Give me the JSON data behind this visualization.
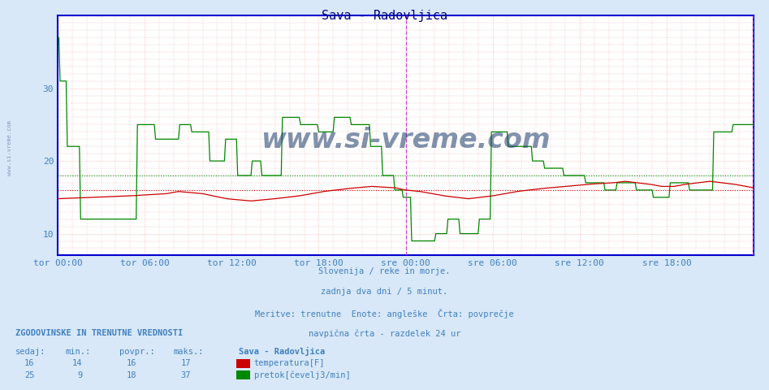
{
  "title": "Sava - Radovljica",
  "title_color": "#000080",
  "bg_color": "#d8e8f8",
  "plot_bg_color": "#ffffff",
  "grid_color_major": "#ffaaaa",
  "grid_color_minor": "#ffe0e0",
  "xlim": [
    0,
    576
  ],
  "ylim": [
    7,
    40
  ],
  "yticks": [
    10,
    20,
    30
  ],
  "xlabel_ticks": [
    0,
    72,
    144,
    216,
    288,
    360,
    432,
    504
  ],
  "xlabel_labels": [
    "tor 00:00",
    "tor 06:00",
    "tor 12:00",
    "tor 18:00",
    "sre 00:00",
    "sre 06:00",
    "sre 12:00",
    "sre 18:00"
  ],
  "avg_line_red": 16.0,
  "avg_line_green": 18.0,
  "avg_line_red_color": "#cc0000",
  "avg_line_green_color": "#008800",
  "vertical_line_x": 288,
  "vertical_line_x2": 575,
  "vline_color": "#cc44cc",
  "subtitle_lines": [
    "Slovenija / reke in morje.",
    "zadnja dva dni / 5 minut.",
    "Meritve: trenutne  Enote: angleške  Črta: povprečje",
    "navpična črta - razdelek 24 ur"
  ],
  "subtitle_color": "#4080c0",
  "legend_title": "ZGODOVINSKE IN TRENUTNE VREDNOSTI",
  "legend_headers": [
    "sedaj:",
    "min.:",
    "povpr.:",
    "maks.:"
  ],
  "legend_row1": [
    "16",
    "14",
    "16",
    "17"
  ],
  "legend_row2": [
    "25",
    "9",
    "18",
    "37"
  ],
  "legend_series_name": "Sava - Radovljica",
  "legend_series1": "temperatura[F]",
  "legend_series2": "pretok[čevelj3/min]",
  "legend_color1": "#cc0000",
  "legend_color2": "#008800",
  "temp_color": "#cc0000",
  "flow_color": "#008800",
  "axis_color": "#0000cc",
  "watermark": "www.si-vreme.com",
  "watermark_color": "#c8d8e8",
  "watermark_text_color": "#1a3a6a",
  "left_label": "www.si-vreme.com",
  "flow_points": [
    [
      0,
      37
    ],
    [
      1,
      37
    ],
    [
      2,
      31
    ],
    [
      7,
      31
    ],
    [
      8,
      22
    ],
    [
      18,
      22
    ],
    [
      19,
      12
    ],
    [
      65,
      12
    ],
    [
      66,
      25
    ],
    [
      80,
      25
    ],
    [
      81,
      23
    ],
    [
      100,
      23
    ],
    [
      101,
      25
    ],
    [
      110,
      25
    ],
    [
      111,
      24
    ],
    [
      125,
      24
    ],
    [
      126,
      20
    ],
    [
      138,
      20
    ],
    [
      139,
      23
    ],
    [
      148,
      23
    ],
    [
      149,
      18
    ],
    [
      160,
      18
    ],
    [
      161,
      20
    ],
    [
      168,
      20
    ],
    [
      169,
      18
    ],
    [
      185,
      18
    ],
    [
      186,
      26
    ],
    [
      200,
      26
    ],
    [
      201,
      25
    ],
    [
      215,
      25
    ],
    [
      216,
      24
    ],
    [
      228,
      24
    ],
    [
      229,
      26
    ],
    [
      242,
      26
    ],
    [
      243,
      25
    ],
    [
      258,
      25
    ],
    [
      259,
      22
    ],
    [
      268,
      22
    ],
    [
      269,
      18
    ],
    [
      278,
      18
    ],
    [
      279,
      16
    ],
    [
      285,
      16
    ],
    [
      286,
      15
    ],
    [
      292,
      15
    ],
    [
      293,
      9
    ],
    [
      312,
      9
    ],
    [
      313,
      10
    ],
    [
      322,
      10
    ],
    [
      323,
      12
    ],
    [
      332,
      12
    ],
    [
      333,
      10
    ],
    [
      348,
      10
    ],
    [
      349,
      12
    ],
    [
      358,
      12
    ],
    [
      359,
      24
    ],
    [
      372,
      24
    ],
    [
      373,
      22
    ],
    [
      392,
      22
    ],
    [
      393,
      20
    ],
    [
      402,
      20
    ],
    [
      403,
      19
    ],
    [
      418,
      19
    ],
    [
      419,
      18
    ],
    [
      436,
      18
    ],
    [
      437,
      17
    ],
    [
      452,
      17
    ],
    [
      453,
      16
    ],
    [
      462,
      16
    ],
    [
      463,
      17
    ],
    [
      478,
      17
    ],
    [
      479,
      16
    ],
    [
      492,
      16
    ],
    [
      493,
      15
    ],
    [
      506,
      15
    ],
    [
      507,
      17
    ],
    [
      522,
      17
    ],
    [
      523,
      16
    ],
    [
      542,
      16
    ],
    [
      543,
      24
    ],
    [
      558,
      24
    ],
    [
      559,
      25
    ],
    [
      575,
      25
    ],
    [
      576,
      25
    ]
  ],
  "temp_points": [
    [
      0,
      14.8
    ],
    [
      30,
      15.0
    ],
    [
      60,
      15.2
    ],
    [
      90,
      15.5
    ],
    [
      100,
      15.8
    ],
    [
      120,
      15.5
    ],
    [
      140,
      14.8
    ],
    [
      160,
      14.5
    ],
    [
      180,
      14.8
    ],
    [
      200,
      15.2
    ],
    [
      220,
      15.8
    ],
    [
      240,
      16.2
    ],
    [
      260,
      16.5
    ],
    [
      280,
      16.3
    ],
    [
      288,
      16.0
    ],
    [
      300,
      15.8
    ],
    [
      310,
      15.5
    ],
    [
      320,
      15.2
    ],
    [
      330,
      15.0
    ],
    [
      340,
      14.8
    ],
    [
      350,
      15.0
    ],
    [
      360,
      15.2
    ],
    [
      370,
      15.5
    ],
    [
      380,
      15.8
    ],
    [
      390,
      16.0
    ],
    [
      400,
      16.2
    ],
    [
      420,
      16.5
    ],
    [
      440,
      16.8
    ],
    [
      460,
      17.0
    ],
    [
      470,
      17.2
    ],
    [
      480,
      17.0
    ],
    [
      490,
      16.8
    ],
    [
      500,
      16.5
    ],
    [
      510,
      16.5
    ],
    [
      520,
      16.8
    ],
    [
      530,
      17.0
    ],
    [
      540,
      17.2
    ],
    [
      550,
      17.0
    ],
    [
      560,
      16.8
    ],
    [
      570,
      16.5
    ],
    [
      576,
      16.3
    ]
  ]
}
